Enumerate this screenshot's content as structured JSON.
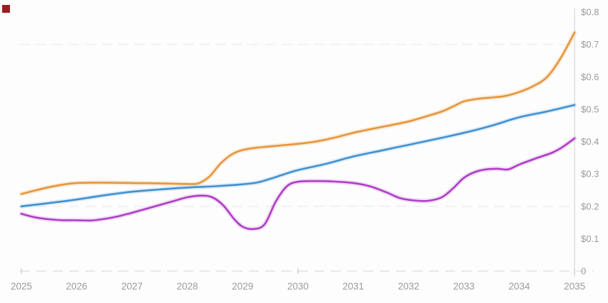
{
  "page": {
    "background": "#fdfdfd"
  },
  "corner_marker": {
    "color": "#9a1e1e"
  },
  "chart_data": {
    "type": "line",
    "title": "",
    "xlabel": "",
    "ylabel": "",
    "xlim": [
      2025,
      2035
    ],
    "ylim": [
      0,
      0.8
    ],
    "legend": "none",
    "grid": "dashed horizontal gridlines at 0.7, 0.2 and dashed baseline at 0",
    "grid_values": [
      0.7,
      0.2,
      0
    ],
    "grid_color": "#f1f1f1",
    "baseline_color": "#e9e9e9",
    "x_axis": {
      "labels": [
        "2025",
        "2026",
        "2027",
        "2028",
        "2029",
        "2030",
        "2031",
        "2032",
        "2033",
        "2034",
        "2035"
      ],
      "tick_years": [
        2025,
        2030,
        2035
      ],
      "tick_color": "#cfcfcf",
      "label_color": "#9a9a9a"
    },
    "y_axis": {
      "position": "right",
      "axis_line_color": "#d6d6d6",
      "label_color": "#9a9a9a",
      "ticks": [
        {
          "value": 0.8,
          "label": "$0.8"
        },
        {
          "value": 0.7,
          "label": "$0.7"
        },
        {
          "value": 0.6,
          "label": "$0.6"
        },
        {
          "value": 0.5,
          "label": "$0.5"
        },
        {
          "value": 0.4,
          "label": "$0.4"
        },
        {
          "value": 0.3,
          "label": "$0.3"
        },
        {
          "value": 0.2,
          "label": "$0.2"
        },
        {
          "value": 0.1,
          "label": "$0.1"
        },
        {
          "value": 0.0,
          "label": "0"
        }
      ]
    },
    "series": [
      {
        "name": "orange-line",
        "color": "#e6953f",
        "halo": "#f6d3a2",
        "points": [
          [
            2025,
            0.238
          ],
          [
            2025.25,
            0.249
          ],
          [
            2025.5,
            0.259
          ],
          [
            2025.75,
            0.267
          ],
          [
            2026,
            0.272
          ],
          [
            2026.5,
            0.273
          ],
          [
            2027,
            0.272
          ],
          [
            2027.5,
            0.271
          ],
          [
            2028,
            0.269
          ],
          [
            2028.2,
            0.271
          ],
          [
            2028.4,
            0.292
          ],
          [
            2028.6,
            0.332
          ],
          [
            2028.8,
            0.36
          ],
          [
            2029,
            0.374
          ],
          [
            2029.25,
            0.381
          ],
          [
            2029.5,
            0.385
          ],
          [
            2029.75,
            0.389
          ],
          [
            2030,
            0.393
          ],
          [
            2030.25,
            0.398
          ],
          [
            2030.5,
            0.406
          ],
          [
            2030.75,
            0.416
          ],
          [
            2031,
            0.427
          ],
          [
            2031.3,
            0.438
          ],
          [
            2031.6,
            0.448
          ],
          [
            2032,
            0.462
          ],
          [
            2032.3,
            0.477
          ],
          [
            2032.6,
            0.493
          ],
          [
            2032.8,
            0.508
          ],
          [
            2033,
            0.524
          ],
          [
            2033.25,
            0.532
          ],
          [
            2033.5,
            0.536
          ],
          [
            2033.75,
            0.541
          ],
          [
            2034,
            0.553
          ],
          [
            2034.25,
            0.571
          ],
          [
            2034.5,
            0.599
          ],
          [
            2034.75,
            0.658
          ],
          [
            2035,
            0.737
          ]
        ]
      },
      {
        "name": "blue-line",
        "color": "#4190d2",
        "halo": "#b5d7f2",
        "points": [
          [
            2025,
            0.2
          ],
          [
            2025.5,
            0.21
          ],
          [
            2026,
            0.221
          ],
          [
            2026.5,
            0.234
          ],
          [
            2027,
            0.245
          ],
          [
            2027.5,
            0.252
          ],
          [
            2028,
            0.258
          ],
          [
            2028.5,
            0.262
          ],
          [
            2029,
            0.268
          ],
          [
            2029.25,
            0.273
          ],
          [
            2029.5,
            0.285
          ],
          [
            2029.75,
            0.299
          ],
          [
            2030,
            0.312
          ],
          [
            2030.5,
            0.331
          ],
          [
            2031,
            0.354
          ],
          [
            2031.5,
            0.372
          ],
          [
            2032,
            0.39
          ],
          [
            2032.5,
            0.408
          ],
          [
            2033,
            0.427
          ],
          [
            2033.5,
            0.449
          ],
          [
            2034,
            0.475
          ],
          [
            2034.5,
            0.493
          ],
          [
            2035,
            0.513
          ]
        ]
      },
      {
        "name": "magenta-line",
        "color": "#ad3fc4",
        "halo": "#e2b2ef",
        "points": [
          [
            2025,
            0.177
          ],
          [
            2025.25,
            0.166
          ],
          [
            2025.5,
            0.16
          ],
          [
            2025.75,
            0.157
          ],
          [
            2026,
            0.157
          ],
          [
            2026.25,
            0.156
          ],
          [
            2026.5,
            0.161
          ],
          [
            2026.75,
            0.169
          ],
          [
            2027,
            0.18
          ],
          [
            2027.25,
            0.192
          ],
          [
            2027.5,
            0.204
          ],
          [
            2027.75,
            0.216
          ],
          [
            2028,
            0.228
          ],
          [
            2028.25,
            0.233
          ],
          [
            2028.45,
            0.228
          ],
          [
            2028.65,
            0.203
          ],
          [
            2028.85,
            0.16
          ],
          [
            2029,
            0.137
          ],
          [
            2029.2,
            0.13
          ],
          [
            2029.4,
            0.145
          ],
          [
            2029.6,
            0.215
          ],
          [
            2029.8,
            0.262
          ],
          [
            2030,
            0.276
          ],
          [
            2030.3,
            0.278
          ],
          [
            2030.6,
            0.277
          ],
          [
            2031,
            0.272
          ],
          [
            2031.3,
            0.262
          ],
          [
            2031.6,
            0.243
          ],
          [
            2031.85,
            0.225
          ],
          [
            2032.1,
            0.218
          ],
          [
            2032.35,
            0.217
          ],
          [
            2032.6,
            0.228
          ],
          [
            2032.8,
            0.255
          ],
          [
            2033,
            0.288
          ],
          [
            2033.2,
            0.306
          ],
          [
            2033.4,
            0.314
          ],
          [
            2033.6,
            0.316
          ],
          [
            2033.8,
            0.314
          ],
          [
            2034,
            0.329
          ],
          [
            2034.3,
            0.348
          ],
          [
            2034.6,
            0.366
          ],
          [
            2034.8,
            0.385
          ],
          [
            2035,
            0.41
          ]
        ]
      }
    ]
  }
}
